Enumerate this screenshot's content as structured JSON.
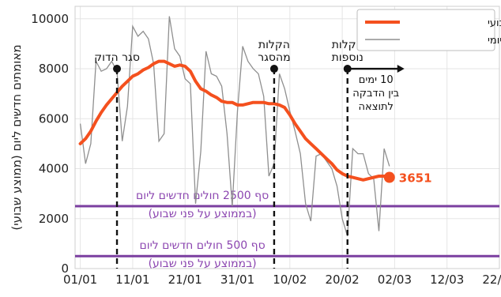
{
  "chart_data": {
    "type": "line",
    "title": "",
    "ylabel": "מאומתים חדשים ליום (ממוצע שבועי)",
    "xlabel": "",
    "x_ticks": [
      "01/01",
      "11/01",
      "21/01",
      "31/01",
      "10/02",
      "20/02",
      "02/03",
      "12/03",
      "22/03"
    ],
    "y_ticks": [
      "0",
      "2000",
      "4000",
      "6000",
      "8000",
      "10000"
    ],
    "xlim": [
      "2020-12-31",
      "2021-03-22"
    ],
    "ylim": [
      0,
      10500
    ],
    "grid": true,
    "legend_position": "top-right",
    "series": [
      {
        "name": "ממוצע שבועי",
        "color": "#f4501e",
        "points": [
          [
            "2021-01-01",
            5000
          ],
          [
            "2021-01-02",
            5200
          ],
          [
            "2021-01-03",
            5500
          ],
          [
            "2021-01-04",
            5900
          ],
          [
            "2021-01-05",
            6250
          ],
          [
            "2021-01-06",
            6550
          ],
          [
            "2021-01-07",
            6800
          ],
          [
            "2021-01-08",
            7050
          ],
          [
            "2021-01-09",
            7300
          ],
          [
            "2021-01-10",
            7500
          ],
          [
            "2021-01-11",
            7700
          ],
          [
            "2021-01-12",
            7800
          ],
          [
            "2021-01-13",
            7950
          ],
          [
            "2021-01-14",
            8050
          ],
          [
            "2021-01-15",
            8200
          ],
          [
            "2021-01-16",
            8300
          ],
          [
            "2021-01-17",
            8300
          ],
          [
            "2021-01-18",
            8200
          ],
          [
            "2021-01-19",
            8100
          ],
          [
            "2021-01-20",
            8150
          ],
          [
            "2021-01-21",
            8100
          ],
          [
            "2021-01-22",
            7900
          ],
          [
            "2021-01-23",
            7500
          ],
          [
            "2021-01-24",
            7200
          ],
          [
            "2021-01-25",
            7100
          ],
          [
            "2021-01-26",
            6950
          ],
          [
            "2021-01-27",
            6850
          ],
          [
            "2021-01-28",
            6700
          ],
          [
            "2021-01-29",
            6650
          ],
          [
            "2021-01-30",
            6650
          ],
          [
            "2021-01-31",
            6550
          ],
          [
            "2021-02-01",
            6550
          ],
          [
            "2021-02-02",
            6600
          ],
          [
            "2021-02-03",
            6650
          ],
          [
            "2021-02-04",
            6650
          ],
          [
            "2021-02-05",
            6650
          ],
          [
            "2021-02-06",
            6600
          ],
          [
            "2021-02-07",
            6600
          ],
          [
            "2021-02-08",
            6550
          ],
          [
            "2021-02-09",
            6450
          ],
          [
            "2021-02-10",
            6150
          ],
          [
            "2021-02-11",
            5800
          ],
          [
            "2021-02-12",
            5500
          ],
          [
            "2021-02-13",
            5200
          ],
          [
            "2021-02-14",
            5000
          ],
          [
            "2021-02-15",
            4800
          ],
          [
            "2021-02-16",
            4600
          ],
          [
            "2021-02-17",
            4400
          ],
          [
            "2021-02-18",
            4200
          ],
          [
            "2021-02-19",
            3950
          ],
          [
            "2021-02-20",
            3800
          ],
          [
            "2021-02-21",
            3700
          ],
          [
            "2021-02-22",
            3650
          ],
          [
            "2021-02-23",
            3600
          ],
          [
            "2021-02-24",
            3550
          ],
          [
            "2021-02-25",
            3600
          ],
          [
            "2021-02-26",
            3650
          ],
          [
            "2021-02-27",
            3700
          ],
          [
            "2021-02-28",
            3700
          ],
          [
            "2021-03-01",
            3651
          ]
        ]
      },
      {
        "name": "ערך יומי",
        "color": "#8f8f8f",
        "points": [
          [
            "2021-01-01",
            5800
          ],
          [
            "2021-01-02",
            4200
          ],
          [
            "2021-01-03",
            5000
          ],
          [
            "2021-01-04",
            8300
          ],
          [
            "2021-01-05",
            7900
          ],
          [
            "2021-01-06",
            8000
          ],
          [
            "2021-01-07",
            8300
          ],
          [
            "2021-01-08",
            7900
          ],
          [
            "2021-01-09",
            5100
          ],
          [
            "2021-01-10",
            6500
          ],
          [
            "2021-01-11",
            9700
          ],
          [
            "2021-01-12",
            9300
          ],
          [
            "2021-01-13",
            9500
          ],
          [
            "2021-01-14",
            9200
          ],
          [
            "2021-01-15",
            8200
          ],
          [
            "2021-01-16",
            5100
          ],
          [
            "2021-01-17",
            5400
          ],
          [
            "2021-01-18",
            10100
          ],
          [
            "2021-01-19",
            8800
          ],
          [
            "2021-01-20",
            8500
          ],
          [
            "2021-01-21",
            7600
          ],
          [
            "2021-01-22",
            7400
          ],
          [
            "2021-01-23",
            2600
          ],
          [
            "2021-01-24",
            4700
          ],
          [
            "2021-01-25",
            8700
          ],
          [
            "2021-01-26",
            7800
          ],
          [
            "2021-01-27",
            7700
          ],
          [
            "2021-01-28",
            7300
          ],
          [
            "2021-01-29",
            5400
          ],
          [
            "2021-01-30",
            2500
          ],
          [
            "2021-01-31",
            6300
          ],
          [
            "2021-02-01",
            8900
          ],
          [
            "2021-02-02",
            8300
          ],
          [
            "2021-02-03",
            8000
          ],
          [
            "2021-02-04",
            7800
          ],
          [
            "2021-02-05",
            6900
          ],
          [
            "2021-02-06",
            3700
          ],
          [
            "2021-02-07",
            4200
          ],
          [
            "2021-02-08",
            7800
          ],
          [
            "2021-02-09",
            7200
          ],
          [
            "2021-02-10",
            6300
          ],
          [
            "2021-02-11",
            5500
          ],
          [
            "2021-02-12",
            4600
          ],
          [
            "2021-02-13",
            2600
          ],
          [
            "2021-02-14",
            1900
          ],
          [
            "2021-02-15",
            4500
          ],
          [
            "2021-02-16",
            4600
          ],
          [
            "2021-02-17",
            4300
          ],
          [
            "2021-02-18",
            4000
          ],
          [
            "2021-02-19",
            3300
          ],
          [
            "2021-02-20",
            2000
          ],
          [
            "2021-02-21",
            1300
          ],
          [
            "2021-02-22",
            4800
          ],
          [
            "2021-02-23",
            4600
          ],
          [
            "2021-02-24",
            4600
          ],
          [
            "2021-02-25",
            3800
          ],
          [
            "2021-02-26",
            3600
          ],
          [
            "2021-02-27",
            1500
          ],
          [
            "2021-02-28",
            4800
          ],
          [
            "2021-03-01",
            4100
          ]
        ]
      }
    ],
    "end_label": {
      "date": "2021-03-01",
      "value": 3651,
      "text": "3651"
    },
    "thresholds": [
      {
        "value": 2500,
        "label_lines": [
          "סף 2500 חולים חדשים ליום",
          "(בממוצע על פני שבוע)"
        ]
      },
      {
        "value": 500,
        "label_lines": [
          "סף 500 חולים חדשים ליום",
          "(בממוצע על פני שבוע)"
        ]
      }
    ],
    "events": [
      {
        "date": "2021-01-08",
        "label_lines": [
          "סגר הדוק"
        ],
        "dot_value": 8000
      },
      {
        "date": "2021-02-07",
        "label_lines": [
          "הקלות",
          "מהסגר"
        ],
        "dot_value": 8000
      },
      {
        "date": "2021-02-21",
        "label_lines": [
          "הקלות",
          "נוספות"
        ],
        "dot_value": 8000,
        "arrow_note": [
          "10 ימים",
          "בין הדבקה",
          "לתוצאה"
        ]
      }
    ]
  }
}
